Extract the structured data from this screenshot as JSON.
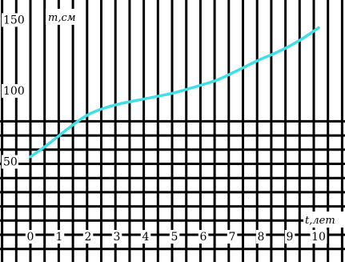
{
  "chart_data": {
    "type": "line",
    "title": "",
    "xlabel": "t,лет",
    "ylabel": "m,см",
    "xlim": [
      0,
      10
    ],
    "ylim": [
      45,
      150
    ],
    "x_ticks": [
      "0",
      "1",
      "2",
      "3",
      "4",
      "5",
      "6",
      "7",
      "8",
      "9",
      "10"
    ],
    "y_ticks": [
      "50",
      "100",
      "150"
    ],
    "grid": true,
    "line_color": "#3ee0e8",
    "series": [
      {
        "x": [
          0,
          0.5,
          1,
          1.5,
          2,
          2.5,
          3,
          3.5,
          4,
          4.5,
          5,
          5.5,
          6,
          6.5,
          7,
          7.5,
          8,
          8.5,
          9,
          9.5,
          10
        ],
        "values": [
          55,
          62,
          70,
          78,
          85,
          89,
          92,
          94,
          96,
          98,
          100,
          103,
          106,
          109,
          114,
          119,
          124,
          128,
          133,
          139,
          146
        ]
      }
    ]
  }
}
